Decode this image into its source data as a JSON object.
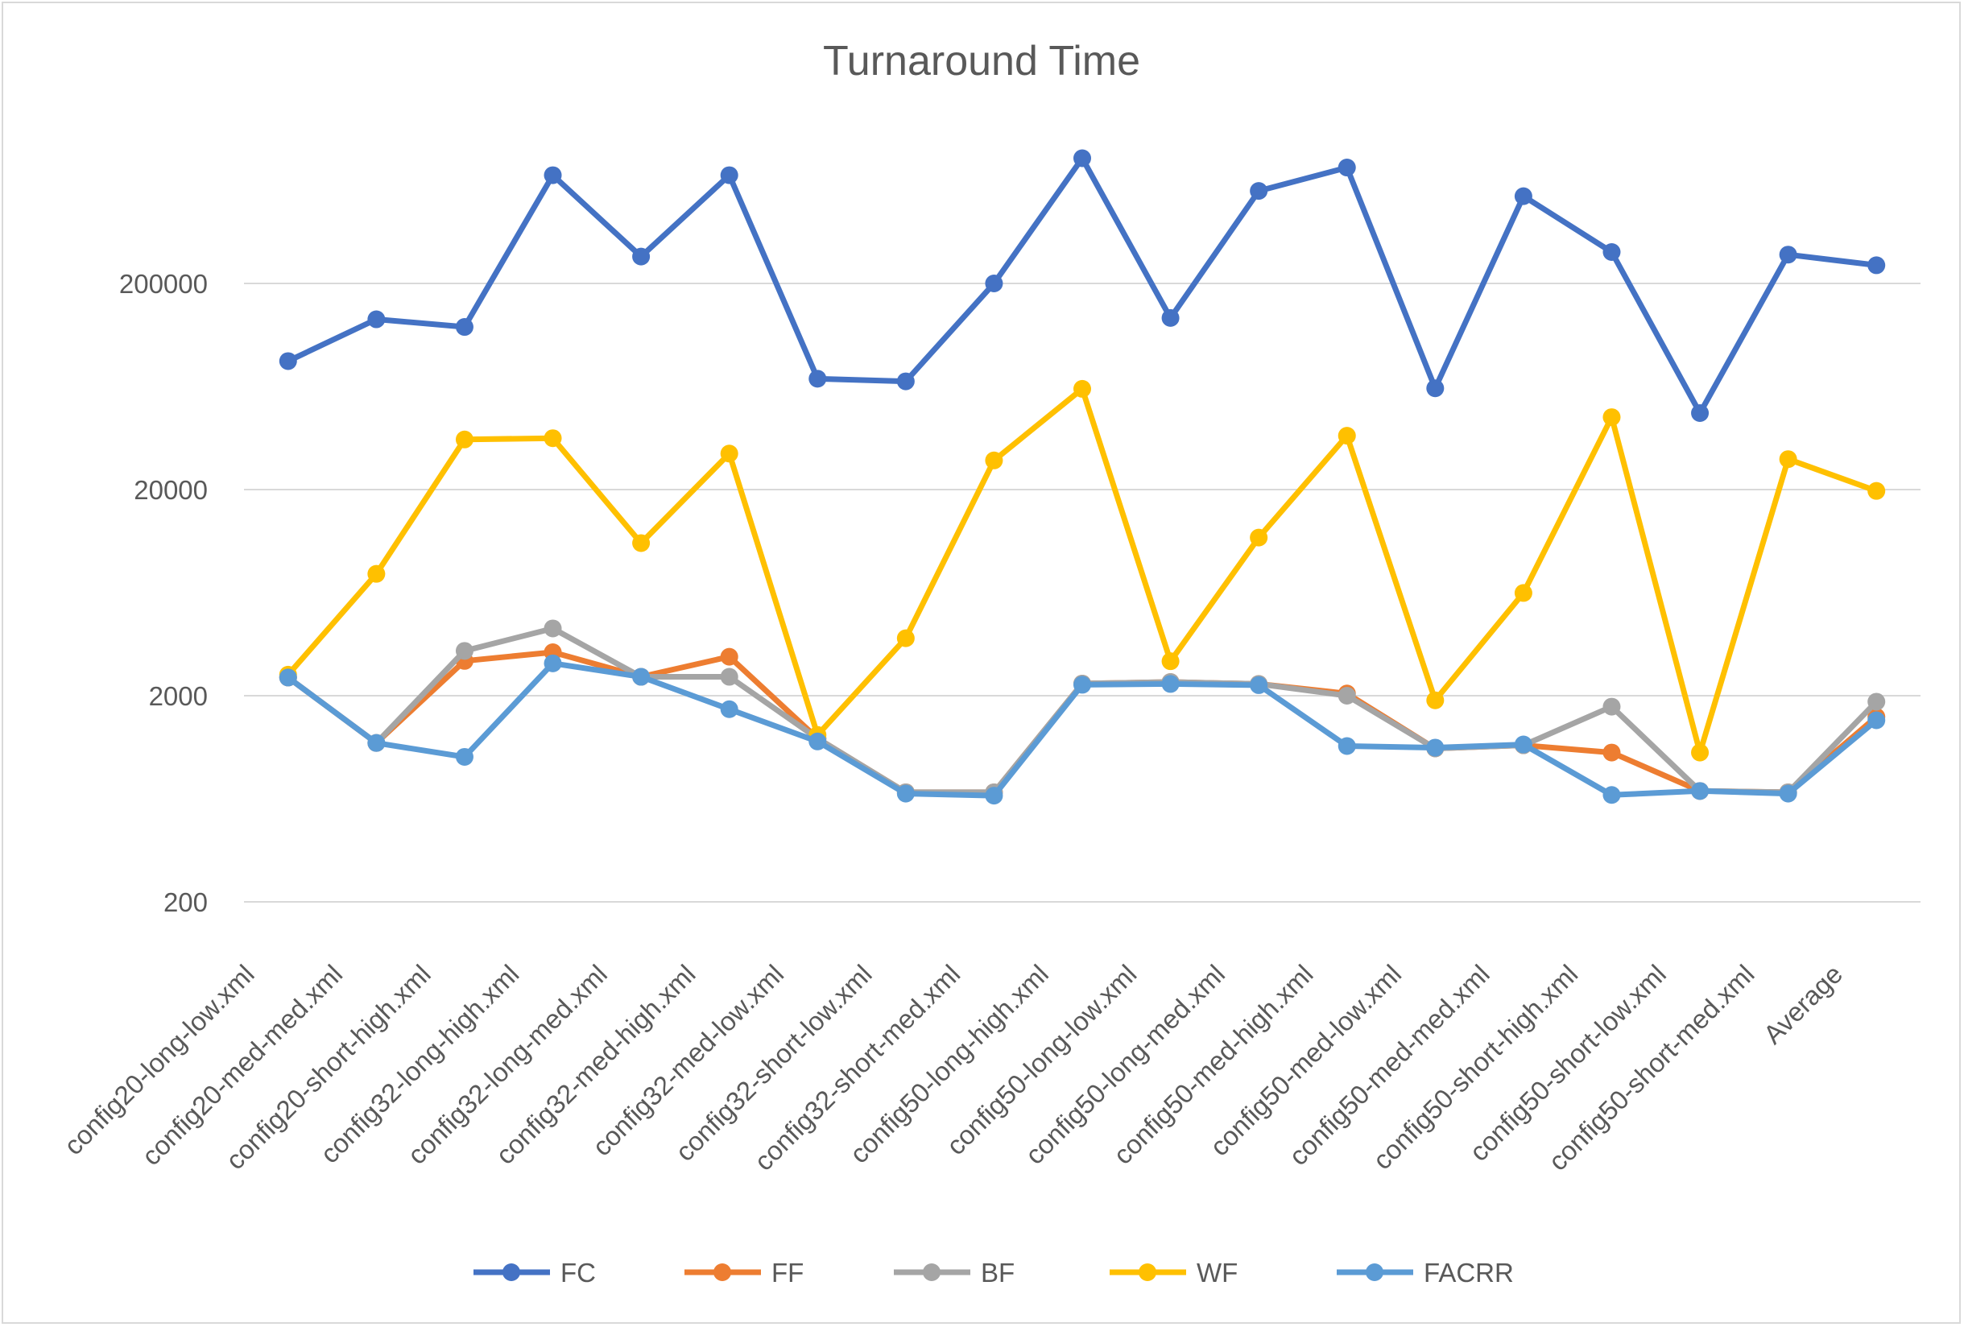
{
  "chart_data": {
    "type": "line",
    "title": "Turnaround Time",
    "xlabel": "",
    "ylabel": "",
    "y_scale": "log",
    "ylim": [
      200,
      2000000
    ],
    "yticks": [
      "200",
      "2000",
      "20000",
      "200000"
    ],
    "grid": true,
    "legend_position": "bottom",
    "categories": [
      "config20-long-low.xml",
      "config20-med-med.xml",
      "config20-short-high.xml",
      "config32-long-high.xml",
      "config32-long-med.xml",
      "config32-med-high.xml",
      "config32-med-low.xml",
      "config32-short-low.xml",
      "config32-short-med.xml",
      "config50-long-high.xml",
      "config50-long-low.xml",
      "config50-long-med.xml",
      "config50-med-high.xml",
      "config50-med-low.xml",
      "config50-med-med.xml",
      "config50-short-high.xml",
      "config50-short-low.xml",
      "config50-short-med.xml",
      "Average"
    ],
    "series": [
      {
        "name": "FC",
        "color": "#4472c4",
        "values": [
          84000,
          134000,
          123000,
          670000,
          270000,
          670000,
          69000,
          67000,
          200000,
          810000,
          136000,
          562000,
          730000,
          62000,
          530000,
          284000,
          47000,
          276000,
          245000
        ]
      },
      {
        "name": "FF",
        "color": "#ed7d31",
        "values": [
          2450,
          1180,
          2950,
          3250,
          2470,
          3090,
          1240,
          680,
          680,
          2290,
          2330,
          2280,
          2050,
          1110,
          1150,
          1060,
          690,
          680,
          1580
        ]
      },
      {
        "name": "BF",
        "color": "#a5a5a5",
        "values": [
          2450,
          1180,
          3300,
          4240,
          2470,
          2470,
          1240,
          680,
          680,
          2290,
          2330,
          2280,
          2000,
          1110,
          1150,
          1770,
          690,
          680,
          1870
        ]
      },
      {
        "name": "WF",
        "color": "#ffc000",
        "values": [
          2530,
          7800,
          35000,
          35500,
          11000,
          29900,
          1290,
          3800,
          27700,
          61600,
          2940,
          11700,
          36500,
          1900,
          6300,
          44900,
          1060,
          28100,
          19700
        ]
      },
      {
        "name": "FACRR",
        "color": "#5b9bd5",
        "values": [
          2450,
          1180,
          1010,
          2870,
          2470,
          1720,
          1200,
          670,
          655,
          2260,
          2280,
          2250,
          1140,
          1120,
          1160,
          660,
          690,
          670,
          1520
        ]
      }
    ]
  }
}
